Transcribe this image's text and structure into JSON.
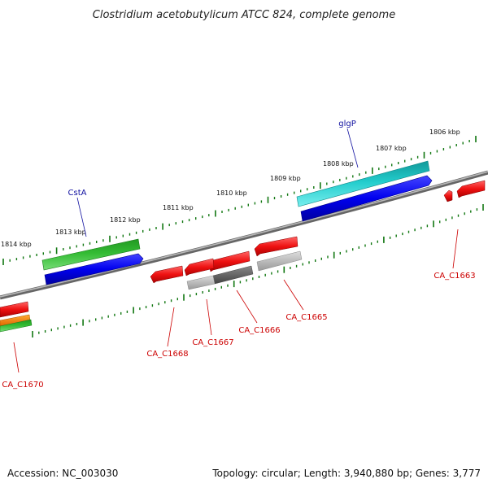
{
  "title": "Clostridium acetobutylicum ATCC 824, complete genome",
  "footer": {
    "accession": "Accession: NC_003030",
    "topology": "Topology: circular; Length: 3,940,880 bp; Genes: 3,777"
  },
  "scale_labels": [
    "1814 kbp",
    "1813 kbp",
    "1812 kbp",
    "1811 kbp",
    "1810 kbp",
    "1809 kbp",
    "1808 kbp",
    "1807 kbp",
    "1806 kbp"
  ],
  "genes": [
    {
      "id": "glgP",
      "label": "glgP",
      "color": "#1010a0",
      "strand": "+"
    },
    {
      "id": "CstA",
      "label": "CstA",
      "color": "#1010a0",
      "strand": "+"
    },
    {
      "id": "CA_C1663",
      "label": "CA_C1663",
      "color": "#cc0000",
      "strand": "-"
    },
    {
      "id": "CA_C1665",
      "label": "CA_C1665",
      "color": "#cc0000",
      "strand": "-"
    },
    {
      "id": "CA_C1666",
      "label": "CA_C1666",
      "color": "#cc0000",
      "strand": "-"
    },
    {
      "id": "CA_C1667",
      "label": "CA_C1667",
      "color": "#cc0000",
      "strand": "-"
    },
    {
      "id": "CA_C1668",
      "label": "CA_C1668",
      "color": "#cc0000",
      "strand": "-"
    },
    {
      "id": "CA_C1670",
      "label": "CA_C1670",
      "color": "#cc0000",
      "strand": "-"
    }
  ],
  "colors": {
    "cds_forward": "#0000ee",
    "gene_forward": "#33bb33",
    "gene_forward_cyan": "#22cccc",
    "cds_reverse": "#ee1111",
    "pseudo_grey": "#aaaaaa",
    "pseudo_dark": "#666666",
    "backbone": "#888888",
    "ticks": "#117711",
    "orange": "#ff8800"
  }
}
